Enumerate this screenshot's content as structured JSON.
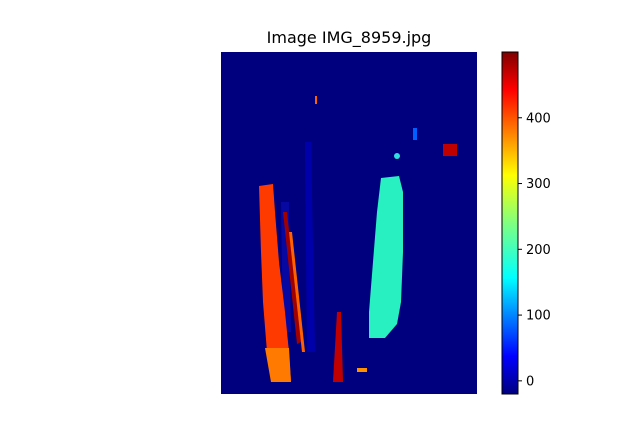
{
  "chart_data": {
    "type": "heatmap",
    "title": "Image IMG_8959.jpg",
    "colormap": "jet",
    "background_color": "#00007f",
    "value_range": [
      -20,
      500
    ],
    "colorbar": {
      "ticks": [
        0,
        100,
        200,
        300,
        400
      ],
      "tick_labels": [
        "0",
        "100",
        "200",
        "300",
        "400"
      ]
    },
    "regions": [
      {
        "label": "left-strip",
        "approx_value": 420
      },
      {
        "label": "right-strip",
        "approx_value": 210
      },
      {
        "label": "top-right-spot",
        "approx_value": 490
      }
    ]
  }
}
